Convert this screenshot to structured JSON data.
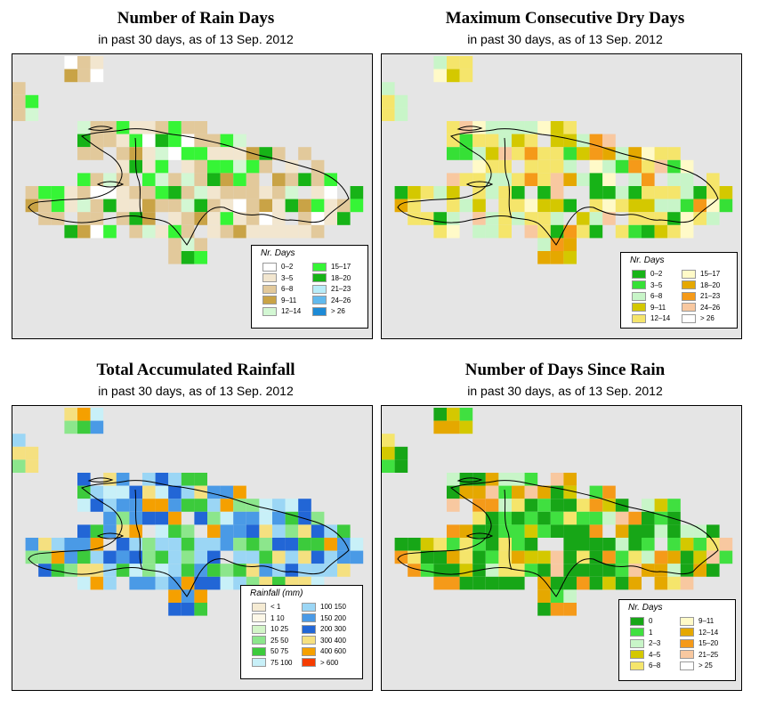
{
  "panels": [
    {
      "id": "rain-days",
      "title": "Number of Rain Days",
      "subtitle": "in past 30 days, as of  13 Sep. 2012",
      "legend": {
        "title": "Nr. Days",
        "items": [
          {
            "label": "0–2",
            "color": "#ffffff"
          },
          {
            "label": "3–5",
            "color": "#f2e6cf"
          },
          {
            "label": "6–8",
            "color": "#e2c99b"
          },
          {
            "label": "9–11",
            "color": "#c9a346"
          },
          {
            "label": "12–14",
            "color": "#d3f7d3"
          },
          {
            "label": "15–17",
            "color": "#36f536"
          },
          {
            "label": "18–20",
            "color": "#17b317"
          },
          {
            "label": "21–23",
            "color": "#b8ecf8"
          },
          {
            "label": "24–26",
            "color": "#61b9ed"
          },
          {
            "label": "> 26",
            "color": "#1d8ad6"
          }
        ]
      }
    },
    {
      "id": "dry-days",
      "title": "Maximum Consecutive Dry Days",
      "subtitle": "in past 30 days, as of  13 Sep. 2012",
      "legend": {
        "title": "Nr. Days",
        "items": [
          {
            "label": "0–2",
            "color": "#17b317"
          },
          {
            "label": "3–5",
            "color": "#36e036"
          },
          {
            "label": "6–8",
            "color": "#c8f5c8"
          },
          {
            "label": "9–11",
            "color": "#d4c800"
          },
          {
            "label": "12–14",
            "color": "#f5e56b"
          },
          {
            "label": "15–17",
            "color": "#fffac8"
          },
          {
            "label": "18–20",
            "color": "#e5a800"
          },
          {
            "label": "21–23",
            "color": "#f59a19"
          },
          {
            "label": "24–26",
            "color": "#f8c8a0"
          },
          {
            "label": "> 26",
            "color": "#ffffff"
          }
        ]
      }
    },
    {
      "id": "rainfall",
      "title": "Total Accumulated Rainfall",
      "subtitle": "in past 30 days, as of  13 Sep. 2012",
      "legend": {
        "title": "Rainfall (mm)",
        "items": [
          {
            "label": "< 1",
            "color": "#f5ebd3"
          },
          {
            "label": "1   10",
            "color": "#fdf8e8"
          },
          {
            "label": "10   25",
            "color": "#d3f5c8"
          },
          {
            "label": "25   50",
            "color": "#8ce68c"
          },
          {
            "label": "50   75",
            "color": "#3ccb3c"
          },
          {
            "label": "75   100",
            "color": "#c8f0f8"
          },
          {
            "label": "100   150",
            "color": "#9bd6f5"
          },
          {
            "label": "150   200",
            "color": "#4a9ae6"
          },
          {
            "label": "200   300",
            "color": "#2266d6"
          },
          {
            "label": "300   400",
            "color": "#f5e080"
          },
          {
            "label": "400   600",
            "color": "#f5a000"
          },
          {
            "label": "> 600",
            "color": "#f53c00"
          }
        ]
      }
    },
    {
      "id": "since-rain",
      "title": "Number of Days Since Rain",
      "subtitle": "in past 30 days, as of  13 Sep. 2012",
      "legend": {
        "title": "Nr. Days",
        "items": [
          {
            "label": "0",
            "color": "#17a617"
          },
          {
            "label": "1",
            "color": "#40e040"
          },
          {
            "label": "2–3",
            "color": "#c8f5c8"
          },
          {
            "label": "4–5",
            "color": "#d4c800"
          },
          {
            "label": "6–8",
            "color": "#f5e56b"
          },
          {
            "label": "9–11",
            "color": "#fffac8"
          },
          {
            "label": "12–14",
            "color": "#e5a800"
          },
          {
            "label": "15–20",
            "color": "#f59a19"
          },
          {
            "label": "21–25",
            "color": "#f8c8a0"
          },
          {
            "label": "> 25",
            "color": "#ffffff"
          }
        ]
      }
    }
  ]
}
